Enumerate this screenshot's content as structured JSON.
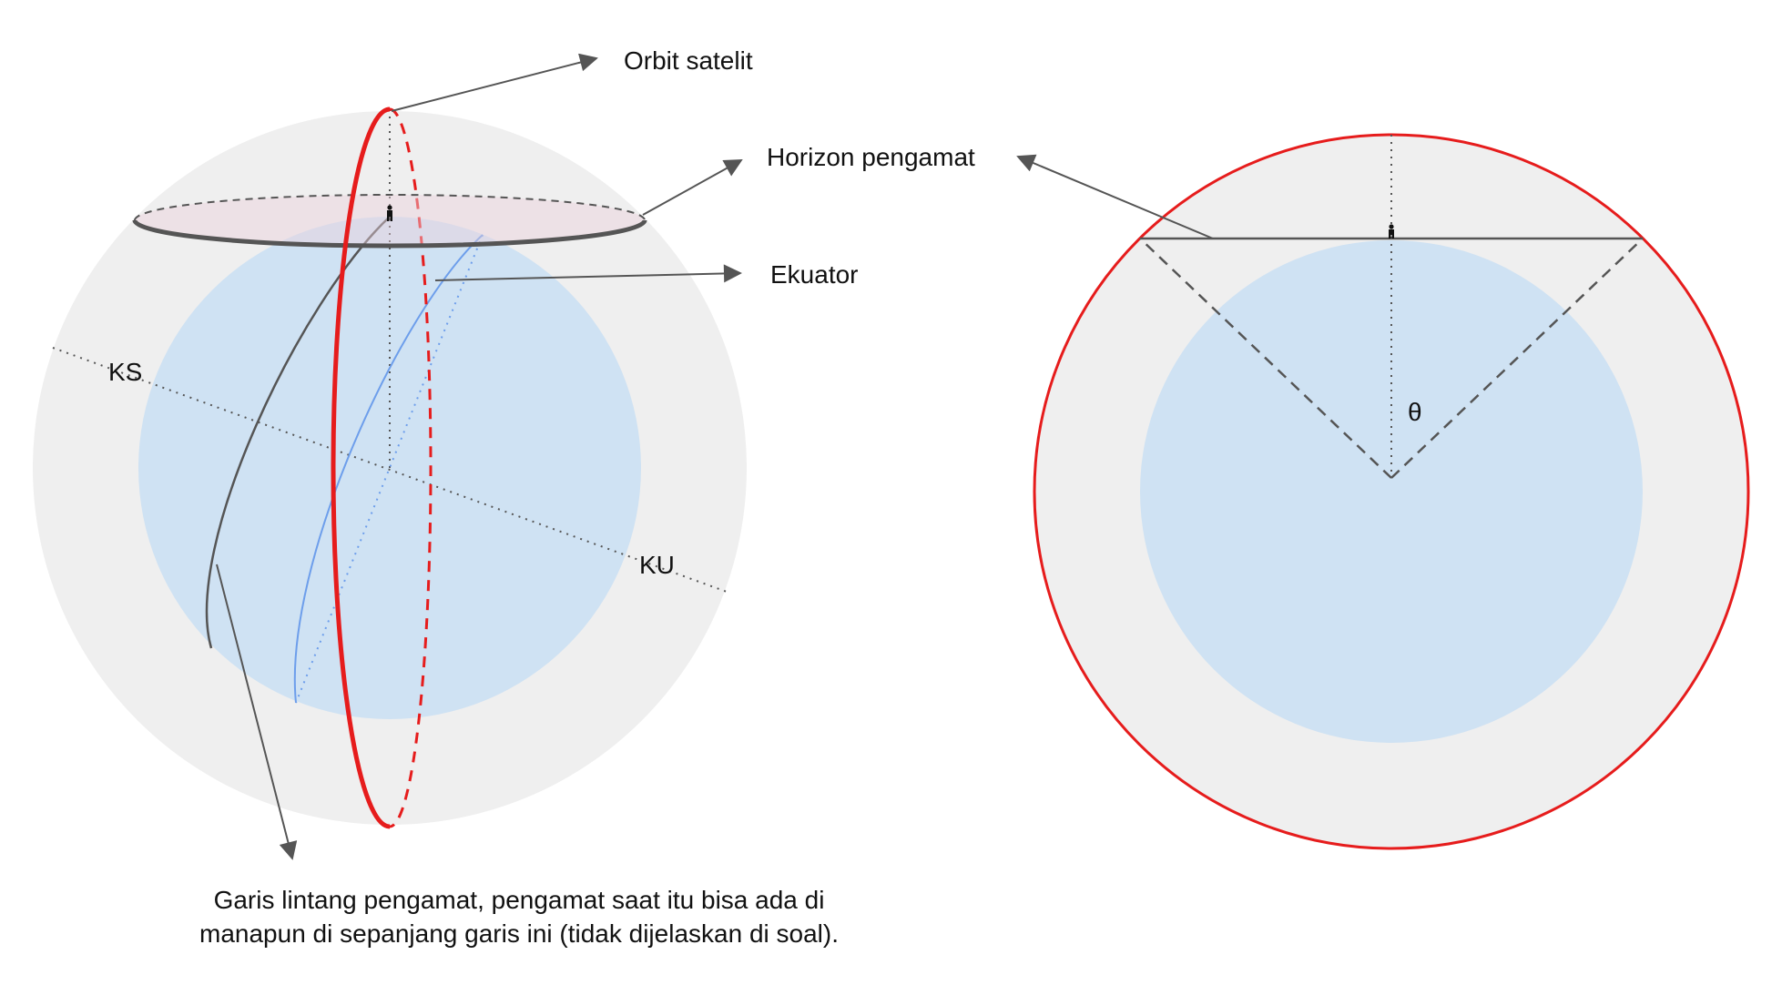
{
  "labels": {
    "orbit": "Orbit satelit",
    "horizon": "Horizon pengamat",
    "equator": "Ekuator",
    "south_pole": "KS",
    "north_pole": "KU",
    "theta": "θ",
    "latitude_line_1": "Garis lintang pengamat, pengamat saat itu bisa ada di",
    "latitude_line_2": "manapun di sepanjang garis ini (tidak dijelaskan di soal)."
  },
  "colors": {
    "orbit_sphere": "#efefef",
    "earth": "#cfe2f3",
    "orbit_line": "#e61c1c",
    "equator_line": "#6d9eeb",
    "horizon_fill": "#ead1dc",
    "line": "#555555"
  }
}
